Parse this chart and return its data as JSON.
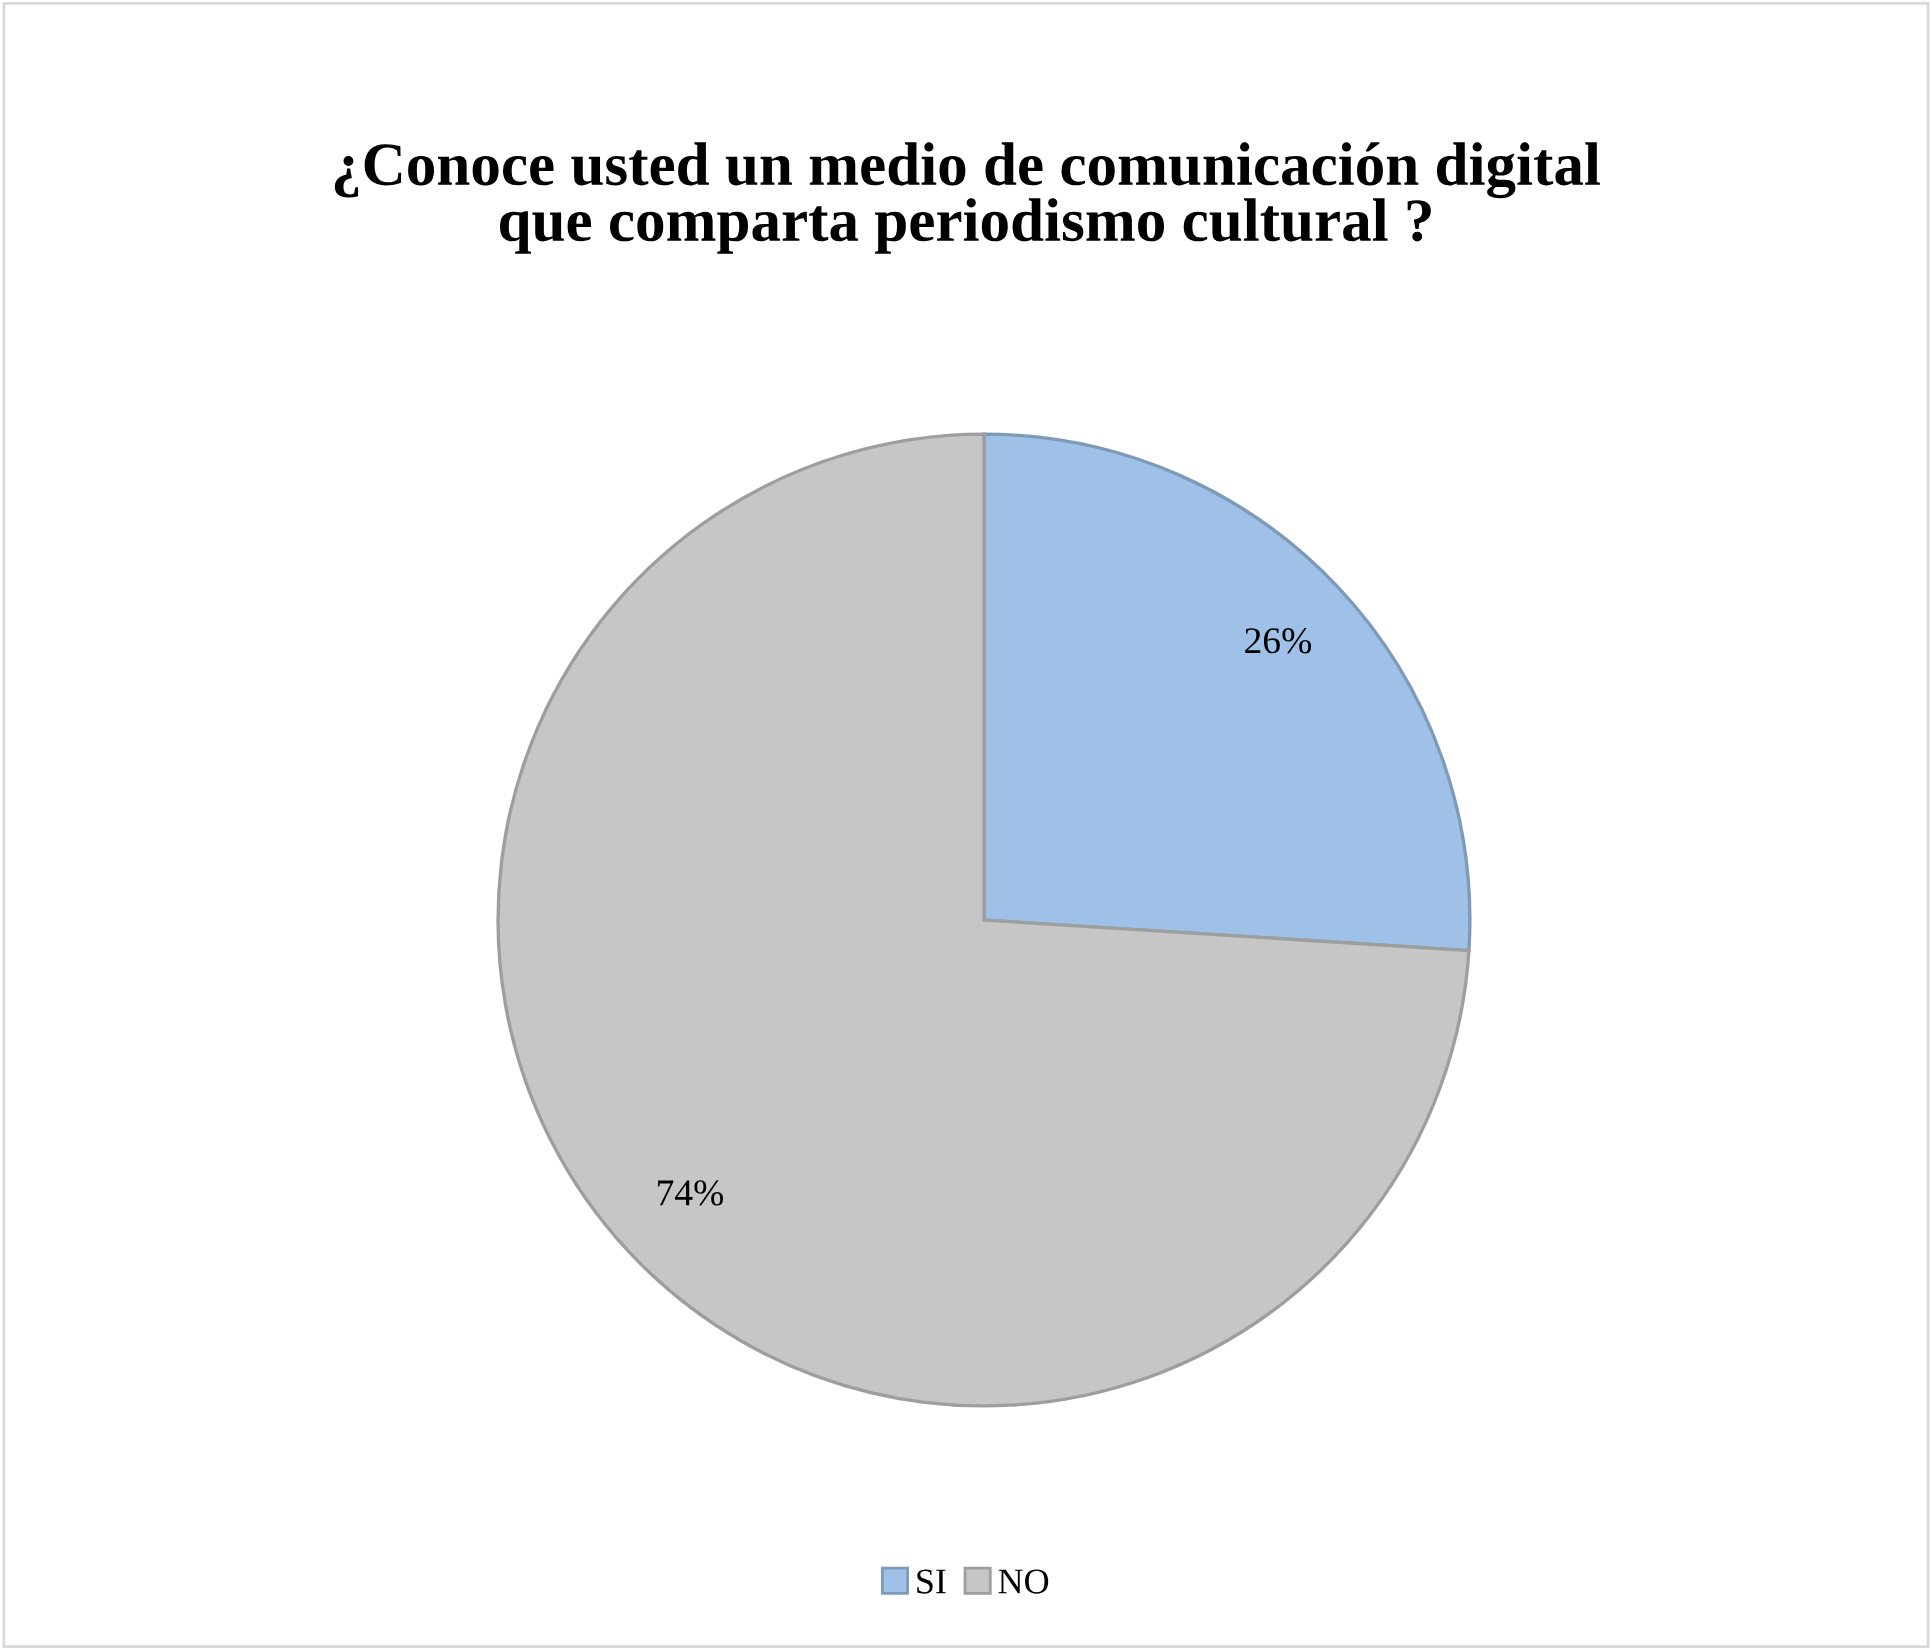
{
  "chart_data": {
    "type": "pie",
    "title": "¿Conoce usted un medio de comunicación digital\nque comparta periodismo cultural ?",
    "categories": [
      "SI",
      "NO"
    ],
    "values": [
      26,
      74
    ],
    "colors": [
      "#9fc1e7",
      "#c6c6c6"
    ],
    "value_labels": [
      "26%",
      "74%"
    ],
    "legend": "bottom"
  }
}
